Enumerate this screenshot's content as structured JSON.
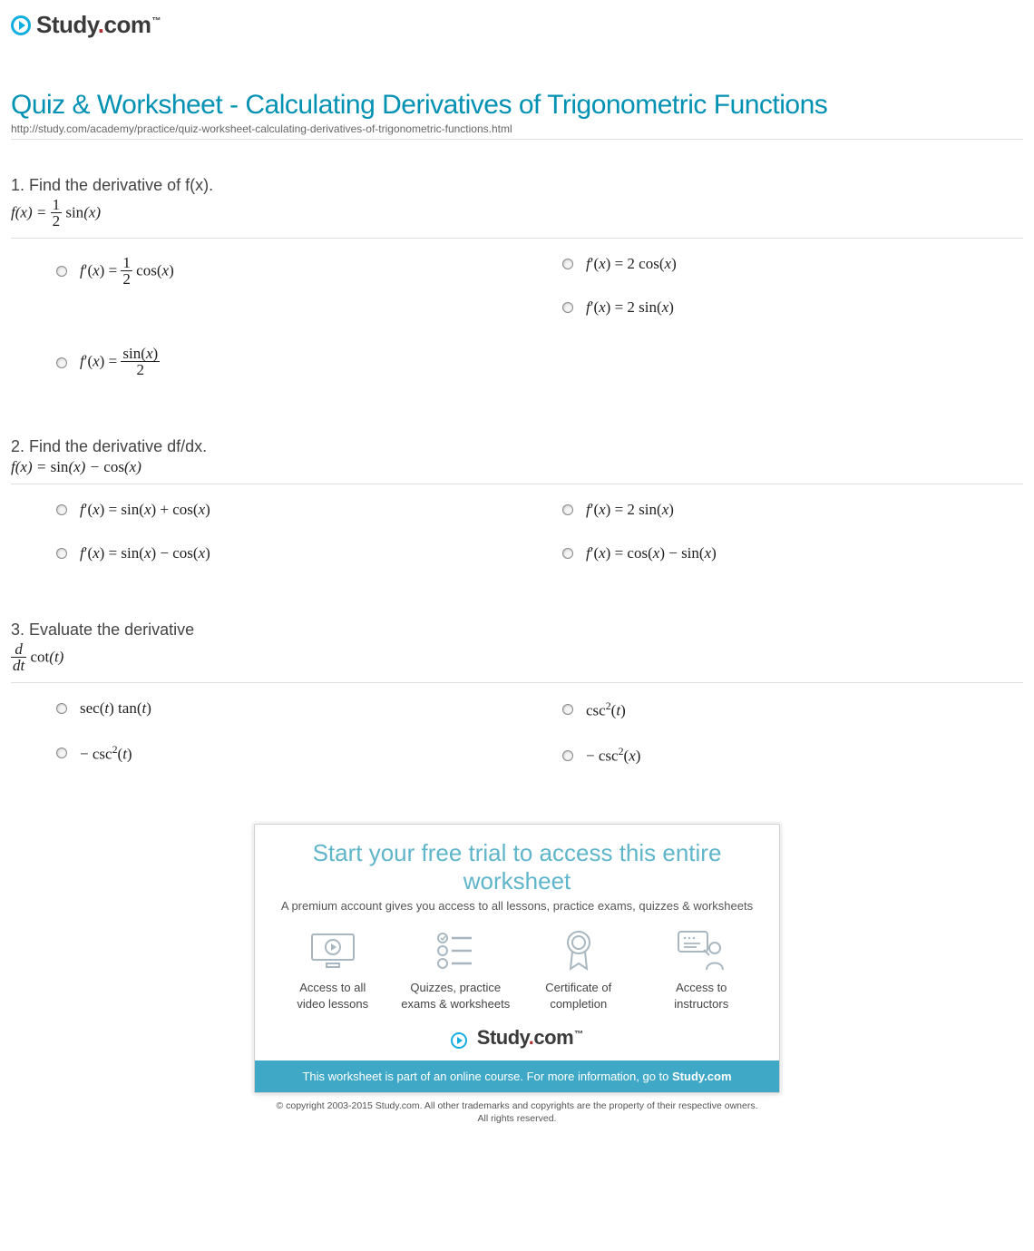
{
  "brand": {
    "name": "Study.com",
    "accent": "#12aee0",
    "dot_color": "#b12f2f"
  },
  "page": {
    "title": "Quiz & Worksheet - Calculating Derivatives of Trigonometric Functions",
    "url": "http://study.com/academy/practice/quiz-worksheet-calculating-derivatives-of-trigonometric-functions.html",
    "title_color": "#0091b3",
    "title_fontsize": 30
  },
  "questions": [
    {
      "number": "1.",
      "prompt": "Find the derivative of f(x).",
      "given_html": "<i>f</i>(<i>x</i>) = <span class='frac'><span class='num'>1</span><span class='den'>2</span></span> <span class='rm'>sin</span>(<i>x</i>)",
      "options_left": [
        "<i>f</i>′(<i>x</i>) = <span class='frac'><span class='num'>1</span><span class='den'>2</span></span> <span class='rm'>cos</span>(<i>x</i>)",
        "<i>f</i>′(<i>x</i>) = <span class='frac'><span class='num'><span class='rm'>sin</span>(<i>x</i>)</span><span class='den'>2</span></span>"
      ],
      "options_right": [
        "<i>f</i>′(<i>x</i>) = 2 <span class='rm'>cos</span>(<i>x</i>)",
        "<i>f</i>′(<i>x</i>) = 2 <span class='rm'>sin</span>(<i>x</i>)"
      ]
    },
    {
      "number": "2.",
      "prompt": "Find the derivative df/dx.",
      "given_html": "<i>f</i>(<i>x</i>) = <span class='rm'>sin</span>(<i>x</i>) − <span class='rm'>cos</span>(<i>x</i>)",
      "options_left": [
        "<i>f</i>′(<i>x</i>) = <span class='rm'>sin</span>(<i>x</i>) + <span class='rm'>cos</span>(<i>x</i>)",
        "<i>f</i>′(<i>x</i>) = <span class='rm'>sin</span>(<i>x</i>) − <span class='rm'>cos</span>(<i>x</i>)"
      ],
      "options_right": [
        "<i>f</i>′(<i>x</i>) = 2 <span class='rm'>sin</span>(<i>x</i>)",
        "<i>f</i>′(<i>x</i>) = <span class='rm'>cos</span>(<i>x</i>) − <span class='rm'>sin</span>(<i>x</i>)"
      ]
    },
    {
      "number": "3.",
      "prompt": "Evaluate the derivative",
      "given_html": "<span class='frac'><span class='num'><i>d</i></span><span class='den'><i>dt</i></span></span> <span class='rm'>cot</span>(<i>t</i>)",
      "options_left": [
        "<span class='rm'>sec</span>(<i>t</i>) <span class='rm'>tan</span>(<i>t</i>)",
        "− <span class='rm'>csc</span><span class='sup'>2</span>(<i>t</i>)"
      ],
      "options_right": [
        "<span class='rm'>csc</span><span class='sup'>2</span>(<i>t</i>)",
        "− <span class='rm'>csc</span><span class='sup'>2</span>(<i>x</i>)"
      ]
    }
  ],
  "promo": {
    "title": "Start your free trial to access this entire worksheet",
    "subtitle": "A premium account gives you access to all lessons, practice exams, quizzes & worksheets",
    "features": [
      {
        "icon": "monitor-play",
        "label_l1": "Access to all",
        "label_l2": "video lessons"
      },
      {
        "icon": "list-check",
        "label_l1": "Quizzes, practice",
        "label_l2": "exams & worksheets"
      },
      {
        "icon": "ribbon",
        "label_l1": "Certificate of",
        "label_l2": "completion"
      },
      {
        "icon": "instructor",
        "label_l1": "Access to",
        "label_l2": "instructors"
      }
    ],
    "bar_text_prefix": "This worksheet is part of an online course. For more information, go to ",
    "bar_link": "Study.com",
    "bar_bg": "#3fa8c6"
  },
  "copyright": {
    "line1": "© copyright 2003-2015 Study.com. All other trademarks and copyrights are the property of their respective owners.",
    "line2": "All rights reserved."
  }
}
